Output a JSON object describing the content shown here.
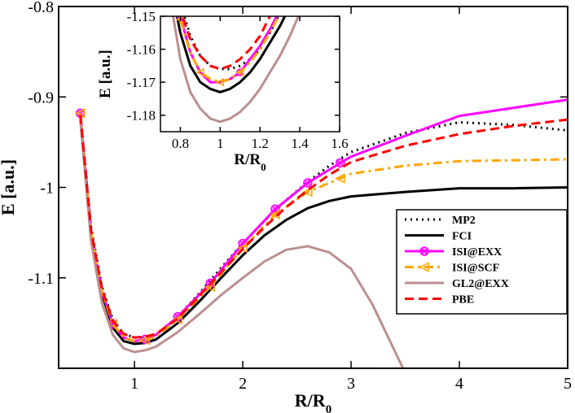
{
  "chart_data": [
    {
      "type": "line",
      "xlabel": "R/R",
      "xlabel_sub": "0",
      "ylabel": "E  [a.u.]",
      "xlim": [
        0.3,
        5
      ],
      "ylim": [
        -1.2,
        -0.8
      ],
      "xticks": [
        1,
        2,
        3,
        4,
        5
      ],
      "xtick_labels": [
        "1",
        "2",
        "3",
        "4",
        "5"
      ],
      "yticks": [
        -1.1,
        -1.0,
        -0.9,
        -0.8
      ],
      "ytick_labels": [
        "-1.1",
        "-1",
        "-0.9",
        "-0.8"
      ],
      "legend_position": "lower-right",
      "series": [
        {
          "name": "MP2",
          "color": "#000000",
          "style": "dotted",
          "marker": "none",
          "x": [
            0.5,
            0.6,
            0.7,
            0.8,
            0.9,
            1.0,
            1.1,
            1.2,
            1.4,
            1.6,
            1.8,
            2.0,
            2.2,
            2.4,
            2.6,
            2.8,
            3.0,
            3.5,
            4.0,
            4.5,
            5.0
          ],
          "y": [
            -0.918,
            -1.045,
            -1.11,
            -1.146,
            -1.162,
            -1.166,
            -1.166,
            -1.163,
            -1.143,
            -1.117,
            -1.089,
            -1.062,
            -1.037,
            -1.014,
            -0.994,
            -0.976,
            -0.961,
            -0.94,
            -0.928,
            -0.931,
            -0.937
          ]
        },
        {
          "name": "FCI",
          "color": "#000000",
          "style": "solid",
          "marker": "none",
          "x": [
            0.5,
            0.6,
            0.7,
            0.8,
            0.9,
            1.0,
            1.1,
            1.2,
            1.4,
            1.6,
            1.8,
            2.0,
            2.2,
            2.4,
            2.6,
            2.8,
            3.0,
            3.2,
            3.5,
            4.0,
            4.5,
            5.0
          ],
          "y": [
            -0.92,
            -1.052,
            -1.118,
            -1.155,
            -1.17,
            -1.173,
            -1.172,
            -1.168,
            -1.15,
            -1.126,
            -1.1,
            -1.075,
            -1.053,
            -1.036,
            -1.023,
            -1.015,
            -1.01,
            -1.008,
            -1.005,
            -1.001,
            -1.001,
            -1.0
          ]
        },
        {
          "name": "ISI@EXX",
          "color": "#ff00ff",
          "style": "solid",
          "marker": "circle",
          "marker_x": [
            0.5,
            0.8,
            1.1,
            1.4,
            1.7,
            2.0,
            2.3,
            2.6,
            2.9
          ],
          "x": [
            0.5,
            0.6,
            0.7,
            0.8,
            0.9,
            1.0,
            1.1,
            1.2,
            1.4,
            1.7,
            2.0,
            2.3,
            2.6,
            2.9,
            3.0,
            3.5,
            4.0,
            4.5,
            5.0
          ],
          "y": [
            -0.918,
            -1.05,
            -1.115,
            -1.151,
            -1.166,
            -1.17,
            -1.168,
            -1.163,
            -1.143,
            -1.106,
            -1.062,
            -1.024,
            -0.995,
            -0.973,
            -0.966,
            -0.943,
            -0.921,
            -0.912,
            -0.903
          ]
        },
        {
          "name": "ISI@SCF",
          "color": "#ffa500",
          "style": "dashdot",
          "marker": "triangle-left",
          "marker_x": [
            0.5,
            0.8,
            1.1,
            1.4,
            1.7,
            2.0,
            2.3,
            2.6,
            2.9
          ],
          "x": [
            0.5,
            0.6,
            0.7,
            0.8,
            0.9,
            1.0,
            1.1,
            1.2,
            1.4,
            1.7,
            2.0,
            2.3,
            2.6,
            2.9,
            3.0,
            3.5,
            4.0,
            4.5,
            5.0
          ],
          "y": [
            -0.918,
            -1.05,
            -1.115,
            -1.151,
            -1.166,
            -1.17,
            -1.169,
            -1.165,
            -1.146,
            -1.11,
            -1.067,
            -1.03,
            -1.005,
            -0.99,
            -0.985,
            -0.976,
            -0.971,
            -0.97,
            -0.969
          ]
        },
        {
          "name": "GL2@EXX",
          "color": "#bc8f8f",
          "style": "solid",
          "marker": "none",
          "x": [
            0.5,
            0.6,
            0.7,
            0.8,
            0.9,
            1.0,
            1.1,
            1.2,
            1.4,
            1.6,
            1.8,
            2.0,
            2.2,
            2.4,
            2.6,
            2.8,
            3.0,
            3.2,
            3.5
          ],
          "y": [
            -0.925,
            -1.06,
            -1.128,
            -1.163,
            -1.178,
            -1.182,
            -1.18,
            -1.176,
            -1.16,
            -1.14,
            -1.119,
            -1.1,
            -1.082,
            -1.069,
            -1.065,
            -1.072,
            -1.09,
            -1.13,
            -1.205
          ]
        },
        {
          "name": "PBE",
          "color": "#ff0000",
          "style": "dashed",
          "marker": "none",
          "x": [
            0.5,
            0.6,
            0.7,
            0.8,
            0.9,
            1.0,
            1.1,
            1.2,
            1.4,
            1.6,
            1.8,
            2.0,
            2.2,
            2.4,
            2.6,
            2.8,
            3.0,
            3.5,
            4.0,
            4.5,
            5.0
          ],
          "y": [
            -0.92,
            -1.048,
            -1.112,
            -1.148,
            -1.162,
            -1.166,
            -1.165,
            -1.162,
            -1.145,
            -1.12,
            -1.094,
            -1.068,
            -1.044,
            -1.022,
            -1.003,
            -0.986,
            -0.972,
            -0.954,
            -0.941,
            -0.932,
            -0.925
          ]
        }
      ]
    },
    {
      "type": "line",
      "xlabel": "R/R",
      "xlabel_sub": "0",
      "ylabel": "E  [a.u.]",
      "xlim": [
        0.7,
        1.6
      ],
      "ylim": [
        -1.185,
        -1.15
      ],
      "xticks": [
        0.8,
        1.0,
        1.2,
        1.4,
        1.6
      ],
      "xtick_labels": [
        "0.8",
        "1",
        "1.2",
        "1.4",
        "1.6"
      ],
      "yticks": [
        -1.18,
        -1.17,
        -1.16,
        -1.15
      ],
      "ytick_labels": [
        "-1.18",
        "-1.17",
        "-1.16",
        "-1.15"
      ],
      "series": [
        {
          "name": "MP2",
          "color": "#000000",
          "style": "dotted",
          "marker": "none",
          "x": [
            0.75,
            0.8,
            0.85,
            0.9,
            0.95,
            1.0,
            1.05,
            1.1,
            1.15,
            1.2,
            1.25,
            1.3
          ],
          "y": [
            -1.13,
            -1.146,
            -1.156,
            -1.162,
            -1.165,
            -1.166,
            -1.166,
            -1.165,
            -1.163,
            -1.16,
            -1.155,
            -1.149
          ]
        },
        {
          "name": "FCI",
          "color": "#000000",
          "style": "solid",
          "marker": "none",
          "x": [
            0.75,
            0.8,
            0.85,
            0.9,
            0.95,
            1.0,
            1.05,
            1.1,
            1.15,
            1.2,
            1.25,
            1.3,
            1.35
          ],
          "y": [
            -1.14,
            -1.155,
            -1.165,
            -1.17,
            -1.172,
            -1.173,
            -1.172,
            -1.17,
            -1.167,
            -1.163,
            -1.158,
            -1.153,
            -1.147
          ]
        },
        {
          "name": "ISI@EXX",
          "color": "#ff00ff",
          "style": "solid",
          "marker": "circle",
          "marker_x": [
            0.8,
            1.1
          ],
          "x": [
            0.75,
            0.8,
            0.85,
            0.9,
            0.95,
            1.0,
            1.05,
            1.1,
            1.15,
            1.2,
            1.25,
            1.3
          ],
          "y": [
            -1.134,
            -1.15,
            -1.161,
            -1.167,
            -1.17,
            -1.17,
            -1.169,
            -1.167,
            -1.163,
            -1.159,
            -1.154,
            -1.148
          ]
        },
        {
          "name": "ISI@SCF",
          "color": "#ffa500",
          "style": "dashdot",
          "marker": "triangle-left",
          "marker_x": [
            0.8,
            0.9,
            1.0,
            1.1
          ],
          "x": [
            0.75,
            0.8,
            0.85,
            0.9,
            0.95,
            1.0,
            1.05,
            1.1,
            1.15,
            1.2,
            1.25,
            1.3
          ],
          "y": [
            -1.134,
            -1.151,
            -1.161,
            -1.167,
            -1.169,
            -1.17,
            -1.169,
            -1.167,
            -1.164,
            -1.16,
            -1.155,
            -1.149
          ]
        },
        {
          "name": "GL2@EXX",
          "color": "#bc8f8f",
          "style": "solid",
          "marker": "none",
          "x": [
            0.75,
            0.8,
            0.85,
            0.9,
            0.95,
            1.0,
            1.05,
            1.1,
            1.15,
            1.2,
            1.25,
            1.3,
            1.35,
            1.4
          ],
          "y": [
            -1.145,
            -1.163,
            -1.173,
            -1.178,
            -1.181,
            -1.182,
            -1.181,
            -1.179,
            -1.176,
            -1.172,
            -1.167,
            -1.162,
            -1.156,
            -1.149
          ]
        },
        {
          "name": "PBE",
          "color": "#ff0000",
          "style": "dashed",
          "marker": "none",
          "x": [
            0.75,
            0.8,
            0.85,
            0.9,
            0.95,
            1.0,
            1.05,
            1.1,
            1.15,
            1.2,
            1.25
          ],
          "y": [
            -1.13,
            -1.148,
            -1.157,
            -1.162,
            -1.165,
            -1.166,
            -1.165,
            -1.163,
            -1.16,
            -1.156,
            -1.15
          ]
        }
      ]
    }
  ]
}
